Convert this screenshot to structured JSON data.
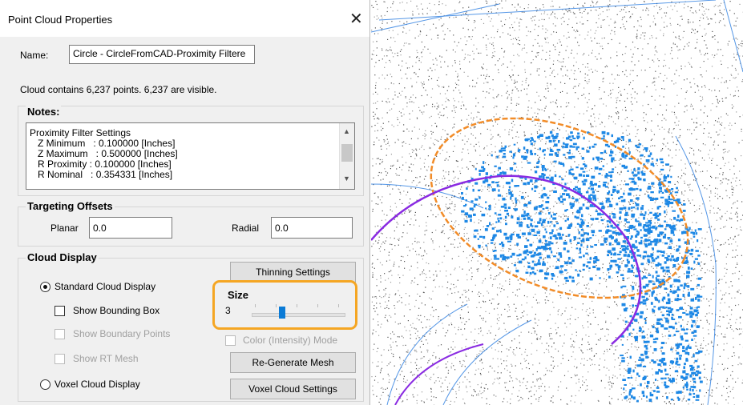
{
  "window": {
    "title": "Point Cloud Properties",
    "close_symbol": "✕"
  },
  "name_row": {
    "label": "Name:",
    "value": "Circle - CircleFromCAD-Proximity Filtere"
  },
  "cloud_info": "Cloud contains 6,237 points.  6,237 are visible.",
  "notes": {
    "heading": "Notes:",
    "lines": [
      "Proximity Filter Settings",
      "   Z Minimum   : 0.100000 [Inches]",
      "   Z Maximum   : 0.500000 [Inches]",
      "   R Proximity : 0.100000 [Inches]",
      "   R Nominal   : 0.354331 [Inches]"
    ]
  },
  "targeting": {
    "heading": "Targeting Offsets",
    "planar_label": "Planar",
    "planar_value": "0.0",
    "radial_label": "Radial",
    "radial_value": "0.0"
  },
  "cloud_display": {
    "heading": "Cloud Display",
    "thinning_button": "Thinning Settings",
    "standard_label": "Standard Cloud Display",
    "bounding_box_label": "Show Bounding Box",
    "boundary_points_label": "Show Boundary Points",
    "rt_mesh_label": "Show RT Mesh",
    "voxel_label": "Voxel Cloud Display",
    "size_label": "Size",
    "size_value": "3",
    "size_slider_fraction": 0.3,
    "color_mode_label": "Color (Intensity) Mode",
    "regen_button": "Re-Generate Mesh",
    "voxel_button": "Voxel Cloud Settings"
  },
  "colors": {
    "highlight": "#f5a623",
    "points_blue": "#1e88e5",
    "ring_orange": "#f28c28",
    "ring_purple": "#8a2be2",
    "slider_thumb": "#0b7bd6"
  }
}
